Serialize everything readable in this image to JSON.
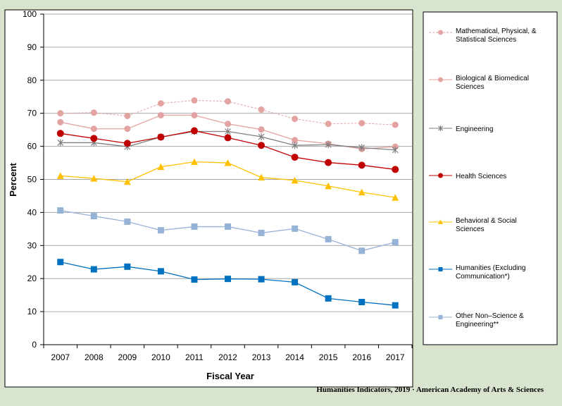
{
  "chart_data": {
    "type": "line",
    "xlabel": "Fiscal Year",
    "ylabel": "Percent",
    "ylim": [
      0,
      100
    ],
    "yticks": [
      0,
      10,
      20,
      30,
      40,
      50,
      60,
      70,
      80,
      90,
      100
    ],
    "grid": true,
    "legend_position": "right",
    "categories": [
      "2007",
      "2008",
      "2009",
      "2010",
      "2011",
      "2012",
      "2013",
      "2014",
      "2015",
      "2016",
      "2017"
    ],
    "series": [
      {
        "name": "Mathematical, Physical, & Statistical Sciences",
        "legend_lines": [
          "Mathematical, Physical, &",
          "Statistical Sciences"
        ],
        "values": [
          70.0,
          70.2,
          69.2,
          73.0,
          73.9,
          73.6,
          71.1,
          68.3,
          66.8,
          67.0,
          66.5
        ],
        "color": "#e3a3a1",
        "marker": "circle",
        "dashed": true,
        "marker_size": 4
      },
      {
        "name": "Biological & Biomedical Sciences",
        "legend_lines": [
          "Biological & Biomedical",
          "Sciences"
        ],
        "values": [
          67.3,
          65.3,
          65.3,
          69.4,
          69.4,
          66.8,
          65.1,
          61.9,
          60.8,
          59.2,
          59.9
        ],
        "color": "#e3a3a1",
        "marker": "circle",
        "dashed": false,
        "marker_size": 4
      },
      {
        "name": "Engineering",
        "legend_lines": [
          "Engineering"
        ],
        "values": [
          61.1,
          61.1,
          59.9,
          62.8,
          64.5,
          64.5,
          62.9,
          60.3,
          60.5,
          59.6,
          58.9
        ],
        "color": "#7f7f7f",
        "marker": "star",
        "dashed": false,
        "marker_size": 4
      },
      {
        "name": "Health Sciences",
        "legend_lines": [
          "Health Sciences"
        ],
        "values": [
          63.9,
          62.4,
          60.9,
          62.8,
          64.7,
          62.6,
          60.3,
          56.7,
          55.1,
          54.3,
          53.0
        ],
        "color": "#c00000",
        "marker": "circle",
        "dashed": false,
        "marker_size": 4.5
      },
      {
        "name": "Behavioral & Social Sciences",
        "legend_lines": [
          "Behavioral & Social",
          "Sciences"
        ],
        "values": [
          51.1,
          50.3,
          49.3,
          53.8,
          55.3,
          55.0,
          50.6,
          49.7,
          48.0,
          46.1,
          44.5
        ],
        "color": "#ffc000",
        "marker": "triangle",
        "dashed": false,
        "marker_size": 4.5
      },
      {
        "name": "Humanities (Excluding Communication*)",
        "legend_lines": [
          "Humanities (Excluding",
          "Communication*)"
        ],
        "values": [
          25.0,
          22.8,
          23.6,
          22.2,
          19.7,
          19.9,
          19.8,
          18.9,
          14.0,
          12.9,
          11.9
        ],
        "color": "#0070c0",
        "marker": "square",
        "dashed": false,
        "marker_size": 4.5
      },
      {
        "name": "Other Non–Science & Engineering**",
        "legend_lines": [
          "Other Non–Science  &",
          "Engineering**"
        ],
        "values": [
          40.6,
          38.9,
          37.2,
          34.6,
          35.7,
          35.7,
          33.8,
          35.1,
          31.9,
          28.4,
          31.0
        ],
        "color": "#95b3d7",
        "marker": "square",
        "dashed": false,
        "marker_size": 4.5
      }
    ]
  },
  "credit": "Humanities  Indicators, 2019 · American Academy of Arts & Sciences"
}
